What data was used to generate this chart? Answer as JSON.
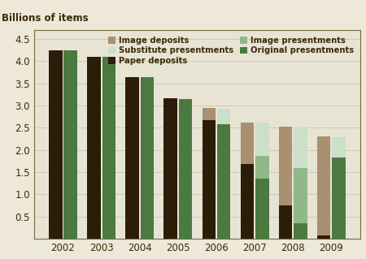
{
  "years": [
    2002,
    2003,
    2004,
    2005,
    2006,
    2007,
    2008,
    2009
  ],
  "paper_deposits": [
    4.25,
    4.1,
    3.63,
    3.17,
    2.67,
    1.68,
    0.75,
    0.08
  ],
  "image_deposits": [
    0.0,
    0.0,
    0.0,
    0.0,
    0.27,
    0.93,
    1.78,
    2.22
  ],
  "original_presentments": [
    4.25,
    4.1,
    3.63,
    3.15,
    2.58,
    1.35,
    0.35,
    1.83
  ],
  "image_presentments": [
    0.0,
    0.0,
    0.0,
    0.0,
    0.0,
    0.52,
    1.25,
    0.0
  ],
  "substitute_presentments": [
    0.0,
    0.0,
    0.0,
    0.0,
    0.35,
    0.75,
    0.9,
    0.45
  ],
  "color_paper_deposits": "#2b1d08",
  "color_image_deposits": "#a89070",
  "color_original_presentments": "#4a7a40",
  "color_image_presentments": "#90b888",
  "color_substitute_presentments": "#ccdfc8",
  "background_color": "#ede8d8",
  "plot_bg_color": "#e8e4d4",
  "ylabel": "Billions of items",
  "ylim": [
    0,
    4.7
  ],
  "yticks": [
    0.5,
    1.0,
    1.5,
    2.0,
    2.5,
    3.0,
    3.5,
    4.0,
    4.5
  ],
  "bar_width": 0.35,
  "bar_gap": 0.04,
  "legend_text_color": "#3a2a08",
  "spine_color": "#7a6a40",
  "grid_color": "#d0c8b0",
  "tick_color": "#3a2a08"
}
